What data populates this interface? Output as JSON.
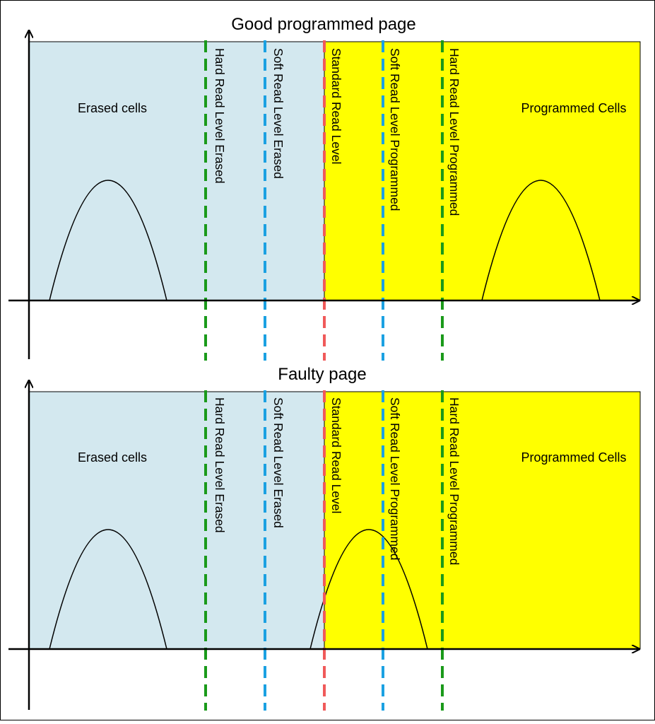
{
  "colors": {
    "erased_region": "#d3e8ef",
    "programmed_region": "#ffff00",
    "hard_read_line": "#1a9a1a",
    "soft_read_line": "#1ba1e2",
    "standard_read_line": "#f05a5a",
    "axis": "#000000",
    "frame": "#000000"
  },
  "panels": [
    {
      "title": "Good programmed page",
      "erased_label": "Erased cells",
      "programmed_label": "Programmed Cells",
      "threshold_labels": {
        "hard_erased": "Hard Read Level Erased",
        "soft_erased": "Soft Read Level Erased",
        "standard": "Standard Read Level",
        "soft_programmed": "Soft Read Level Programmed",
        "hard_programmed": "Hard Read Level Programmed"
      }
    },
    {
      "title": "Faulty page",
      "erased_label": "Erased cells",
      "programmed_label": "Programmed Cells",
      "threshold_labels": {
        "hard_erased": "Hard Read Level Erased",
        "soft_erased": "Soft Read Level Erased",
        "standard": "Standard Read Level",
        "soft_programmed": "Soft Read Level Programmed",
        "hard_programmed": "Hard Read Level Programmed"
      }
    }
  ]
}
